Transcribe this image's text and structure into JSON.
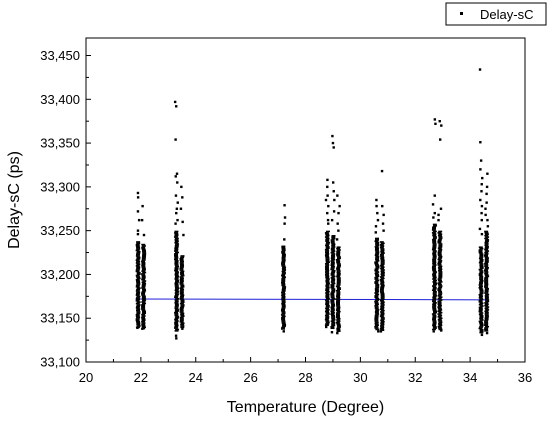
{
  "chart_data": {
    "type": "scatter",
    "title": "",
    "xlabel": "Temperature (Degree)",
    "ylabel": "Delay-sC (ps)",
    "xlim": [
      20,
      36
    ],
    "ylim": [
      33100,
      33470
    ],
    "x_ticks": [
      20,
      22,
      24,
      26,
      28,
      30,
      32,
      34,
      36
    ],
    "x_tick_labels": [
      "20",
      "22",
      "24",
      "26",
      "28",
      "30",
      "32",
      "34",
      "36"
    ],
    "y_ticks": [
      33100,
      33150,
      33200,
      33250,
      33300,
      33350,
      33400,
      33450
    ],
    "y_tick_labels": [
      "33,100",
      "33,150",
      "33,200",
      "33,250",
      "33,300",
      "33,350",
      "33,400",
      "33,450"
    ],
    "grid": false,
    "legend_position": "top-right",
    "colors": {
      "points": "#000000",
      "fit_line": "#1f1fd6",
      "axes": "#000000"
    },
    "series": [
      {
        "name": "Delay-sC",
        "clusters": [
          {
            "x": 21.9,
            "dense_range": [
              33140,
              33238
            ],
            "outliers": [
              33293,
              33288,
              33272,
              33262,
              33250,
              33246,
              33139
            ]
          },
          {
            "x": 22.1,
            "dense_range": [
              33138,
              33235
            ],
            "outliers": [
              33278,
              33262,
              33245,
              33138
            ]
          },
          {
            "x": 23.3,
            "dense_range": [
              33135,
              33250
            ],
            "outliers": [
              33397,
              33392,
              33354,
              33315,
              33312,
              33305,
              33290,
              33282,
              33275,
              33270,
              33262,
              33258,
              33130,
              33127
            ]
          },
          {
            "x": 23.5,
            "dense_range": [
              33140,
              33222
            ],
            "outliers": [
              33300,
              33288,
              33275,
              33260,
              33245,
              33138
            ]
          },
          {
            "x": 27.2,
            "dense_range": [
              33138,
              33233
            ],
            "outliers": [
              33279,
              33265,
              33258,
              33240,
              33135
            ]
          },
          {
            "x": 28.8,
            "dense_range": [
              33142,
              33250
            ],
            "outliers": [
              33308,
              33300,
              33290,
              33285,
              33278,
              33270,
              33262,
              33258,
              33140
            ]
          },
          {
            "x": 29.0,
            "dense_range": [
              33138,
              33245
            ],
            "outliers": [
              33358,
              33350,
              33345,
              33305,
              33295,
              33285,
              33272,
              33262,
              33134
            ]
          },
          {
            "x": 29.2,
            "dense_range": [
              33136,
              33232
            ],
            "outliers": [
              33290,
              33278,
              33270,
              33258,
              33250,
              33240,
              33133
            ]
          },
          {
            "x": 30.6,
            "dense_range": [
              33138,
              33242
            ],
            "outliers": [
              33285,
              33278,
              33270,
              33262,
              33255,
              33248,
              33135
            ]
          },
          {
            "x": 30.8,
            "dense_range": [
              33137,
              33238
            ],
            "outliers": [
              33318,
              33278,
              33268,
              33258,
              33250,
              33135
            ]
          },
          {
            "x": 32.7,
            "dense_range": [
              33137,
              33258
            ],
            "outliers": [
              33377,
              33372,
              33290,
              33280,
              33270,
              33265,
              33135
            ]
          },
          {
            "x": 32.9,
            "dense_range": [
              33138,
              33250
            ],
            "outliers": [
              33375,
              33370,
              33354,
              33275,
              33268,
              33262,
              33136
            ]
          },
          {
            "x": 34.4,
            "dense_range": [
              33134,
              33232
            ],
            "outliers": [
              33434,
              33351,
              33330,
              33320,
              33310,
              33303,
              33295,
              33285,
              33278,
              33270,
              33262,
              33252,
              33246,
              33131
            ]
          },
          {
            "x": 34.6,
            "dense_range": [
              33136,
              33250
            ],
            "outliers": [
              33315,
              33300,
              33292,
              33282,
              33275,
              33268,
              33262,
              33255,
              33133
            ]
          }
        ]
      }
    ],
    "fit_line": {
      "x": [
        21.8,
        34.7
      ],
      "y": [
        33172,
        33171
      ]
    }
  }
}
